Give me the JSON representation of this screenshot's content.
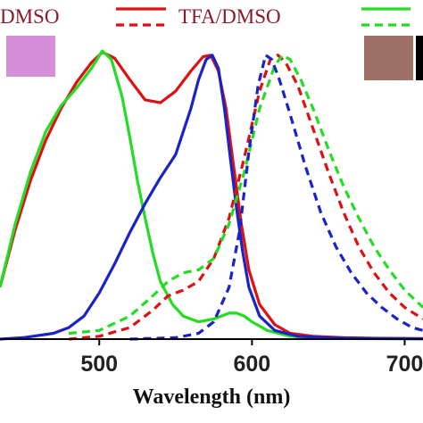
{
  "chart_data": {
    "type": "line",
    "title": "",
    "xlabel": "Wavelength (nm)",
    "ylabel": "",
    "xlim": [
      435,
      712
    ],
    "ylim": [
      0,
      1.0
    ],
    "x_ticks": [
      500,
      600,
      700
    ],
    "x_tick_labels": [
      "500",
      "600",
      "700"
    ],
    "legend_position": "top",
    "legend": [
      {
        "label": "DMSO",
        "color": "#cc0000",
        "style": "solid",
        "partial": true
      },
      {
        "label": "TFA/DMSO",
        "color": "#dd1111",
        "style": "both"
      },
      {
        "label": "",
        "color": "#22dd22",
        "style": "both",
        "partial": true
      }
    ],
    "swatches": [
      {
        "name": "dmso-color-swatch",
        "color": "#d48fd8"
      },
      {
        "name": "tfa-color-swatch",
        "color": "#9e7068"
      }
    ],
    "series": [
      {
        "color": "#dd1111",
        "style": "solid",
        "x": [
          435,
          445,
          455,
          465,
          475,
          485,
          495,
          502,
          510,
          520,
          530,
          540,
          550,
          560,
          568,
          573,
          578,
          583,
          588,
          593,
          598,
          605,
          615,
          625,
          640,
          660,
          680,
          712
        ],
        "y": [
          0.18,
          0.38,
          0.55,
          0.69,
          0.8,
          0.89,
          0.96,
          0.995,
          0.975,
          0.9,
          0.83,
          0.82,
          0.86,
          0.93,
          0.98,
          0.985,
          0.93,
          0.8,
          0.6,
          0.4,
          0.24,
          0.12,
          0.05,
          0.02,
          0.01,
          0.005,
          0.003,
          0.002
        ]
      },
      {
        "color": "#22dd22",
        "style": "solid",
        "x": [
          435,
          445,
          455,
          465,
          475,
          485,
          495,
          502,
          508,
          515,
          520,
          525,
          530,
          535,
          540,
          548,
          555,
          565,
          575,
          585,
          590,
          595,
          600,
          610,
          625,
          640,
          660,
          712
        ],
        "y": [
          0.18,
          0.4,
          0.58,
          0.72,
          0.81,
          0.87,
          0.94,
          1.0,
          0.97,
          0.84,
          0.7,
          0.55,
          0.42,
          0.3,
          0.2,
          0.12,
          0.08,
          0.06,
          0.07,
          0.09,
          0.09,
          0.08,
          0.06,
          0.03,
          0.01,
          0.005,
          0.002,
          0.001
        ]
      },
      {
        "color": "#1a22c8",
        "style": "solid",
        "x": [
          435,
          450,
          470,
          480,
          490,
          500,
          510,
          520,
          530,
          540,
          550,
          560,
          565,
          570,
          574,
          578,
          582,
          586,
          590,
          594,
          598,
          605,
          615,
          630,
          650,
          680,
          712
        ],
        "y": [
          0.0,
          0.005,
          0.02,
          0.04,
          0.08,
          0.16,
          0.26,
          0.37,
          0.47,
          0.56,
          0.64,
          0.8,
          0.9,
          0.97,
          0.985,
          0.94,
          0.8,
          0.62,
          0.45,
          0.3,
          0.18,
          0.08,
          0.03,
          0.01,
          0.005,
          0.002,
          0.001
        ]
      },
      {
        "color": "#dd1111",
        "style": "dashed",
        "x": [
          480,
          500,
          520,
          535,
          545,
          555,
          565,
          575,
          585,
          595,
          605,
          612,
          617,
          622,
          630,
          640,
          650,
          660,
          670,
          680,
          690,
          700,
          712
        ],
        "y": [
          0.0,
          0.01,
          0.04,
          0.1,
          0.15,
          0.17,
          0.2,
          0.28,
          0.42,
          0.63,
          0.86,
          0.97,
          0.985,
          0.96,
          0.88,
          0.73,
          0.58,
          0.44,
          0.32,
          0.23,
          0.16,
          0.11,
          0.07
        ]
      },
      {
        "color": "#22dd22",
        "style": "dashed",
        "x": [
          480,
          500,
          520,
          535,
          545,
          555,
          565,
          575,
          585,
          595,
          605,
          615,
          620,
          625,
          632,
          640,
          650,
          660,
          670,
          680,
          690,
          700,
          712
        ],
        "y": [
          0.02,
          0.03,
          0.08,
          0.15,
          0.2,
          0.23,
          0.24,
          0.28,
          0.4,
          0.58,
          0.8,
          0.95,
          0.985,
          0.97,
          0.9,
          0.8,
          0.66,
          0.53,
          0.42,
          0.32,
          0.24,
          0.17,
          0.11
        ]
      },
      {
        "color": "#1a22c8",
        "style": "dashed",
        "x": [
          520,
          550,
          565,
          575,
          585,
          592,
          598,
          604,
          609,
          613,
          618,
          625,
          635,
          645,
          655,
          665,
          675,
          685,
          695,
          705,
          712
        ],
        "y": [
          0.0,
          0.005,
          0.02,
          0.06,
          0.18,
          0.38,
          0.65,
          0.88,
          0.985,
          0.97,
          0.9,
          0.78,
          0.6,
          0.44,
          0.32,
          0.23,
          0.16,
          0.11,
          0.07,
          0.04,
          0.03
        ]
      }
    ]
  }
}
